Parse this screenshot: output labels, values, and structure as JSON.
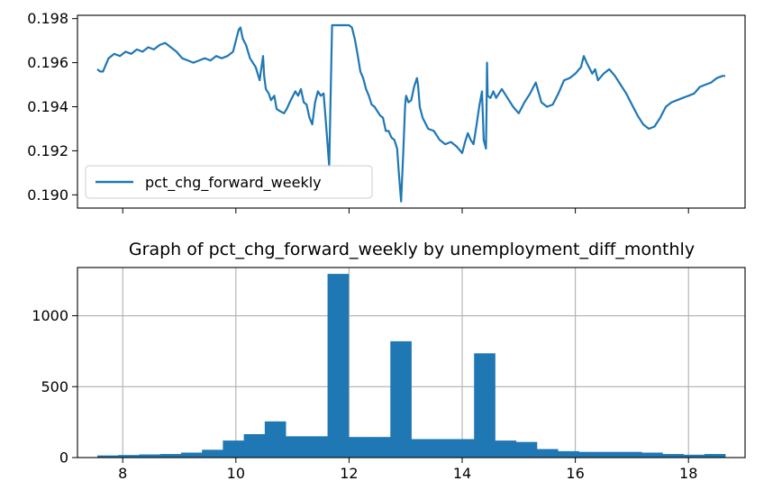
{
  "chart_data": [
    {
      "type": "line",
      "title": "",
      "xlabel": "",
      "ylabel": "",
      "xlim": [
        7.2,
        19.0
      ],
      "ylim": [
        0.1894,
        0.19815
      ],
      "yticks": [
        0.19,
        0.192,
        0.194,
        0.196,
        0.198
      ],
      "ytick_labels": [
        "0.190",
        "0.192",
        "0.194",
        "0.196",
        "0.198"
      ],
      "xticks": [
        8,
        10,
        12,
        14,
        16,
        18
      ],
      "show_xtick_labels": false,
      "grid": false,
      "legend": {
        "position": "lower-left"
      },
      "series": [
        {
          "name": "pct_chg_forward_weekly",
          "color": "#1f77b4",
          "x": [
            7.55,
            7.6,
            7.65,
            7.75,
            7.85,
            7.95,
            8.05,
            8.15,
            8.25,
            8.35,
            8.45,
            8.55,
            8.65,
            8.75,
            8.85,
            8.95,
            9.05,
            9.15,
            9.25,
            9.35,
            9.45,
            9.55,
            9.65,
            9.75,
            9.85,
            9.95,
            10.0,
            10.05,
            10.08,
            10.12,
            10.18,
            10.25,
            10.35,
            10.42,
            10.48,
            10.5,
            10.53,
            10.58,
            10.62,
            10.68,
            10.72,
            10.78,
            10.85,
            10.9,
            10.97,
            11.05,
            11.1,
            11.15,
            11.2,
            11.25,
            11.3,
            11.35,
            11.4,
            11.45,
            11.5,
            11.55,
            11.6,
            11.65,
            11.7,
            11.72,
            11.74,
            11.75,
            11.76,
            11.8,
            11.9,
            12.0,
            12.05,
            12.1,
            12.15,
            12.2,
            12.25,
            12.3,
            12.35,
            12.4,
            12.45,
            12.5,
            12.55,
            12.6,
            12.65,
            12.7,
            12.75,
            12.8,
            12.85,
            12.88,
            12.92,
            12.96,
            12.99,
            13.0,
            13.01,
            13.05,
            13.1,
            13.15,
            13.2,
            13.22,
            13.25,
            13.3,
            13.4,
            13.5,
            13.6,
            13.7,
            13.8,
            13.9,
            14.0,
            14.05,
            14.1,
            14.15,
            14.2,
            14.25,
            14.3,
            14.35,
            14.38,
            14.42,
            14.43,
            14.44,
            14.45,
            14.5,
            14.55,
            14.6,
            14.7,
            14.8,
            14.9,
            15.0,
            15.1,
            15.2,
            15.3,
            15.4,
            15.5,
            15.6,
            15.7,
            15.8,
            15.9,
            16.0,
            16.1,
            16.15,
            16.2,
            16.3,
            16.35,
            16.4,
            16.5,
            16.6,
            16.7,
            16.8,
            16.9,
            17.0,
            17.1,
            17.2,
            17.3,
            17.4,
            17.5,
            17.6,
            17.7,
            17.8,
            17.9,
            18.0,
            18.1,
            18.2,
            18.3,
            18.4,
            18.5,
            18.6,
            18.65
          ],
          "y": [
            0.1957,
            0.1956,
            0.1956,
            0.1962,
            0.1964,
            0.1963,
            0.1965,
            0.1964,
            0.1966,
            0.1965,
            0.1967,
            0.1966,
            0.1968,
            0.1969,
            0.1967,
            0.1965,
            0.1962,
            0.1961,
            0.196,
            0.1961,
            0.1962,
            0.1961,
            0.1963,
            0.1962,
            0.1963,
            0.1965,
            0.197,
            0.1975,
            0.1976,
            0.1971,
            0.1968,
            0.1962,
            0.1958,
            0.1952,
            0.1963,
            0.1954,
            0.1948,
            0.1946,
            0.1943,
            0.1945,
            0.1939,
            0.1938,
            0.1937,
            0.1939,
            0.1943,
            0.1947,
            0.1945,
            0.1948,
            0.1942,
            0.1941,
            0.1935,
            0.1932,
            0.1942,
            0.1947,
            0.1945,
            0.1946,
            0.193,
            0.1913,
            0.1977,
            0.1977,
            0.1977,
            0.1977,
            0.1977,
            0.1977,
            0.1977,
            0.1977,
            0.1976,
            0.1971,
            0.1964,
            0.1956,
            0.1953,
            0.1948,
            0.1945,
            0.1941,
            0.194,
            0.1938,
            0.1936,
            0.1935,
            0.1929,
            0.1929,
            0.1926,
            0.1925,
            0.1921,
            0.191,
            0.1897,
            0.192,
            0.194,
            0.1943,
            0.1945,
            0.1942,
            0.1943,
            0.1949,
            0.1953,
            0.195,
            0.194,
            0.1935,
            0.193,
            0.1929,
            0.1925,
            0.1923,
            0.1924,
            0.1922,
            0.1919,
            0.1924,
            0.1928,
            0.1925,
            0.1923,
            0.1931,
            0.194,
            0.1947,
            0.1925,
            0.1921,
            0.1937,
            0.196,
            0.1945,
            0.1944,
            0.1947,
            0.1944,
            0.1948,
            0.1944,
            0.194,
            0.1937,
            0.1942,
            0.1946,
            0.1951,
            0.1942,
            0.194,
            0.1941,
            0.1946,
            0.1952,
            0.1953,
            0.1955,
            0.1958,
            0.1963,
            0.196,
            0.1955,
            0.1957,
            0.1952,
            0.1955,
            0.1957,
            0.1954,
            0.195,
            0.1946,
            0.1941,
            0.1936,
            0.1932,
            0.193,
            0.1931,
            0.1935,
            0.194,
            0.1942,
            0.1943,
            0.1944,
            0.1945,
            0.1946,
            0.1949,
            0.195,
            0.1951,
            0.1953,
            0.1954,
            0.1954
          ]
        }
      ]
    },
    {
      "type": "bar",
      "title": "Graph of pct_chg_forward_weekly by unemployment_diff_monthly",
      "xlabel": "",
      "ylabel": "",
      "xlim": [
        7.2,
        19.0
      ],
      "ylim": [
        0,
        1340
      ],
      "xticks": [
        8,
        10,
        12,
        14,
        16,
        18
      ],
      "xtick_labels": [
        "8",
        "10",
        "12",
        "14",
        "16",
        "18"
      ],
      "yticks": [
        0,
        500,
        1000
      ],
      "ytick_labels": [
        "0",
        "500",
        "1000"
      ],
      "grid": true,
      "series": [
        {
          "color": "#1f77b4",
          "bin_edges": [
            7.55,
            7.92,
            8.29,
            8.66,
            9.03,
            9.4,
            9.77,
            10.14,
            10.51,
            10.88,
            11.25,
            11.62,
            11.99,
            12.36,
            12.73,
            13.1,
            13.47,
            13.84,
            14.21,
            14.58,
            14.95,
            15.32,
            15.69,
            16.06,
            16.43,
            16.8,
            17.17,
            17.54,
            17.91,
            18.28,
            18.65
          ],
          "counts": [
            15,
            18,
            22,
            25,
            35,
            55,
            120,
            165,
            255,
            150,
            150,
            1295,
            145,
            145,
            820,
            130,
            130,
            130,
            735,
            120,
            110,
            60,
            45,
            40,
            40,
            40,
            35,
            25,
            20,
            25
          ]
        }
      ]
    }
  ]
}
